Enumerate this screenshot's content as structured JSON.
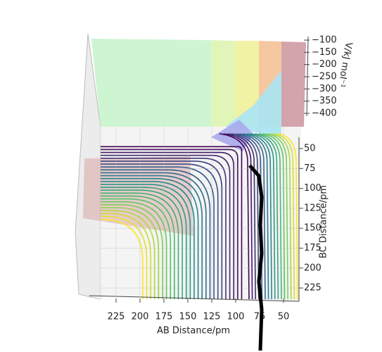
{
  "chart_data": {
    "type": "surface-contour",
    "x_label": "AB Distance/pm",
    "y_label": "BC Distance/pm",
    "z_label": "V/kJ mol⁻¹",
    "xlim": [
      40,
      235
    ],
    "xticks": [
      225,
      200,
      175,
      150,
      125,
      100,
      75,
      50
    ],
    "ylim": [
      40,
      235
    ],
    "yticks": [
      50,
      75,
      100,
      125,
      150,
      175,
      200,
      225
    ],
    "zlim": [
      -400,
      -100
    ],
    "zticks": [
      {
        "value": -100,
        "label": "−100"
      },
      {
        "value": -150,
        "label": "−150"
      },
      {
        "value": -200,
        "label": "−200"
      },
      {
        "value": -250,
        "label": "−250"
      },
      {
        "value": -300,
        "label": "−300"
      },
      {
        "value": -350,
        "label": "−350"
      },
      {
        "value": -400,
        "label": "−400"
      }
    ],
    "grid": true,
    "trajectory": {
      "color": "#000000",
      "x": [
        85.3,
        75.7,
        72.8,
        74.3,
        72.8,
        75.7,
        72.8,
        74.3
      ],
      "y": [
        71.2,
        84.5,
        111,
        146,
        181.6,
        217,
        252,
        303.5
      ]
    }
  }
}
